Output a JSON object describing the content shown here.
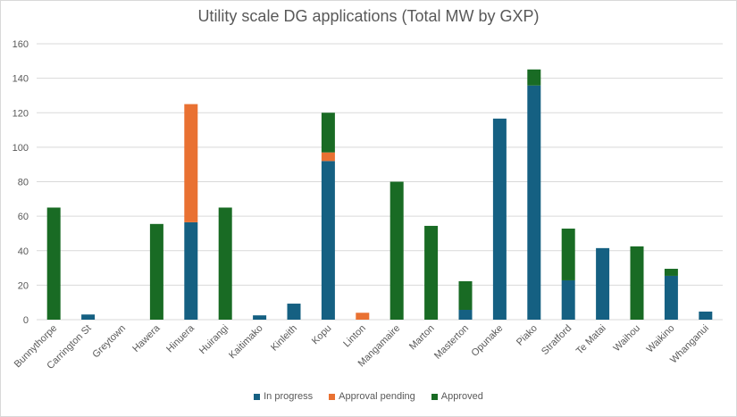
{
  "chart_data": {
    "type": "bar",
    "stacked": true,
    "title": "Utility scale DG applications (Total MW by GXP)",
    "xlabel": "",
    "ylabel": "",
    "ylim": [
      0,
      160
    ],
    "yticks": [
      0,
      20,
      40,
      60,
      80,
      100,
      120,
      140,
      160
    ],
    "grid": true,
    "legend_position": "bottom",
    "categories": [
      "Bunnythorpe",
      "Carrington St",
      "Greytown",
      "Hawera",
      "Hinuera",
      "Huirangi",
      "Kaitimako",
      "Kinleith",
      "Kopu",
      "Linton",
      "Mangamaire",
      "Marton",
      "Masterton",
      "Opunake",
      "Piako",
      "Stratford",
      "Te Matai",
      "Waihou",
      "Waikino",
      "Whanganui"
    ],
    "series": [
      {
        "name": "In progress",
        "color": "#156082",
        "values": [
          0,
          3,
          0,
          0,
          56.5,
          0,
          2.5,
          9.3,
          92,
          0,
          0,
          0,
          5.7,
          116.6,
          135.8,
          22.8,
          41.5,
          0,
          25.4,
          4.7
        ]
      },
      {
        "name": "Approval pending",
        "color": "#E97132",
        "values": [
          0,
          0,
          0,
          0,
          68.5,
          0,
          0,
          0,
          5,
          4,
          0,
          0,
          0,
          0,
          0,
          0,
          0,
          0,
          0,
          0
        ]
      },
      {
        "name": "Approved",
        "color": "#196B24",
        "values": [
          65,
          0,
          0,
          55.5,
          0,
          65,
          0,
          0,
          23,
          0,
          80,
          54.4,
          16.6,
          0,
          9.3,
          30,
          0,
          42.5,
          4.1,
          0
        ]
      }
    ]
  }
}
